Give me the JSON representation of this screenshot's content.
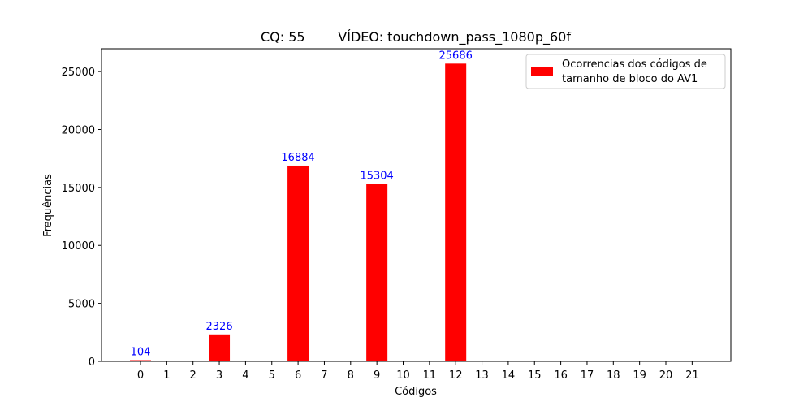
{
  "chart_data": {
    "type": "bar",
    "title": "CQ: 55        VÍDEO: touchdown_pass_1080p_60f",
    "xlabel": "Códigos",
    "ylabel": "Frequências",
    "categories": [
      "0",
      "1",
      "2",
      "3",
      "4",
      "5",
      "6",
      "7",
      "8",
      "9",
      "10",
      "11",
      "12",
      "13",
      "14",
      "15",
      "16",
      "17",
      "18",
      "19",
      "20",
      "21"
    ],
    "series": [
      {
        "name": "Ocorrencias dos códigos de\ntamanho de bloco do AV1",
        "values": [
          104,
          0,
          0,
          2326,
          0,
          0,
          16884,
          0,
          0,
          15304,
          0,
          0,
          25686,
          0,
          0,
          0,
          0,
          0,
          0,
          0,
          0,
          0
        ],
        "color": "#ff0000"
      }
    ],
    "data_labels": [
      {
        "index": 0,
        "text": "104"
      },
      {
        "index": 3,
        "text": "2326"
      },
      {
        "index": 6,
        "text": "16884"
      },
      {
        "index": 9,
        "text": "15304"
      },
      {
        "index": 12,
        "text": "25686"
      }
    ],
    "data_label_color": "#0000ff",
    "yticks": [
      0,
      5000,
      10000,
      15000,
      20000,
      25000
    ],
    "ylim": [
      0,
      26970
    ],
    "legend_position": "top-right",
    "legend_lines": [
      "Ocorrencias dos códigos de",
      "tamanho de bloco do AV1"
    ],
    "grid": false
  }
}
